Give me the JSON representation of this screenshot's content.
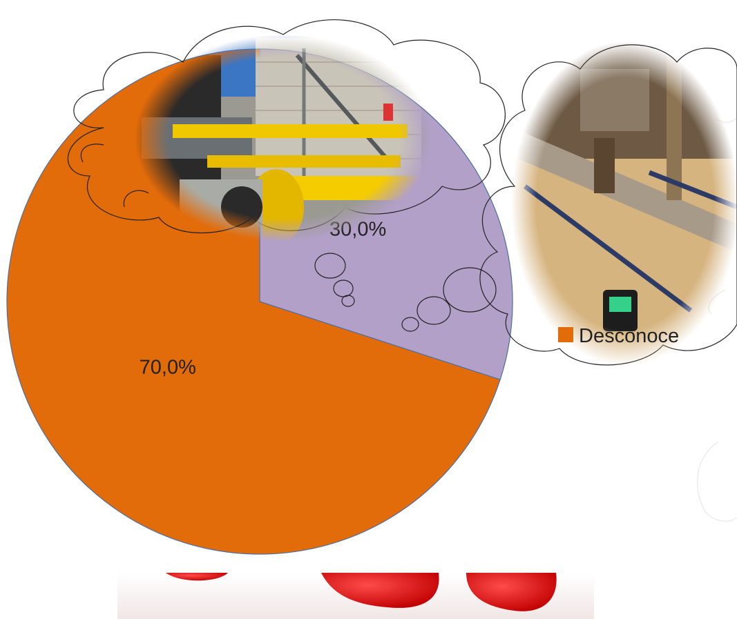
{
  "chart_data": {
    "type": "pie",
    "slices": [
      {
        "label": "",
        "value": 30.0,
        "value_label": "30,0%",
        "color": "#B3A0C8"
      },
      {
        "label": "Desconoce",
        "value": 70.0,
        "value_label": "70,0%",
        "color": "#E36C0A"
      }
    ],
    "start_angle_deg": 0,
    "direction": "clockwise",
    "legend": {
      "position": "right",
      "entries": [
        "Desconoce"
      ]
    }
  },
  "illustrations": [
    {
      "name": "pipeline-station-photo",
      "shape": "thought-bubble"
    },
    {
      "name": "flowmeter-pipe-photo",
      "shape": "thought-bubble"
    },
    {
      "name": "red-figure-feet",
      "shape": "cartoon"
    }
  ]
}
